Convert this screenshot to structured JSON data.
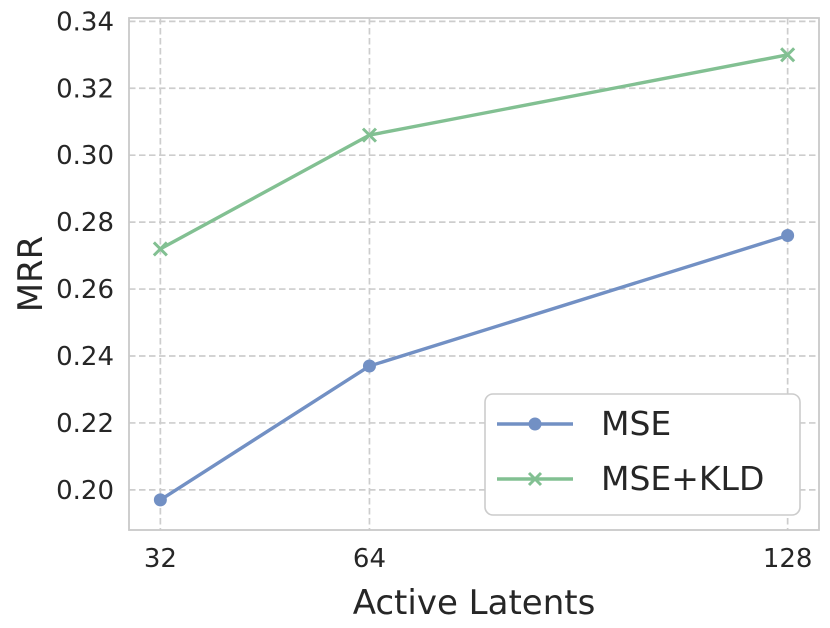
{
  "chart_data": {
    "type": "line",
    "title": "",
    "xlabel": "Active Latents",
    "ylabel": "MRR",
    "x": [
      32,
      64,
      128
    ],
    "series": [
      {
        "name": "MSE",
        "marker": "circle",
        "color": "#7290c4",
        "values": [
          0.197,
          0.237,
          0.276
        ]
      },
      {
        "name": "MSE+KLD",
        "marker": "x",
        "color": "#82c092",
        "values": [
          0.272,
          0.306,
          0.33
        ]
      }
    ],
    "xticks": [
      32,
      64,
      128
    ],
    "xtick_labels": [
      "32",
      "64",
      "128"
    ],
    "yticks": [
      0.2,
      0.22,
      0.24,
      0.26,
      0.28,
      0.3,
      0.32,
      0.34
    ],
    "ytick_labels": [
      "0.20",
      "0.22",
      "0.24",
      "0.26",
      "0.28",
      "0.30",
      "0.32",
      "0.34"
    ],
    "xlim": [
      27.2,
      132.8
    ],
    "ylim": [
      0.188,
      0.341
    ],
    "grid": true,
    "grid_style": "dashed",
    "legend_position": "lower right",
    "colors": {
      "background": "#ffffff",
      "text": "#262626",
      "grid": "#cdcdcd",
      "spine": "#c9c9c9",
      "legend_border": "#cccccc",
      "legend_fill": "#ffffff"
    }
  }
}
